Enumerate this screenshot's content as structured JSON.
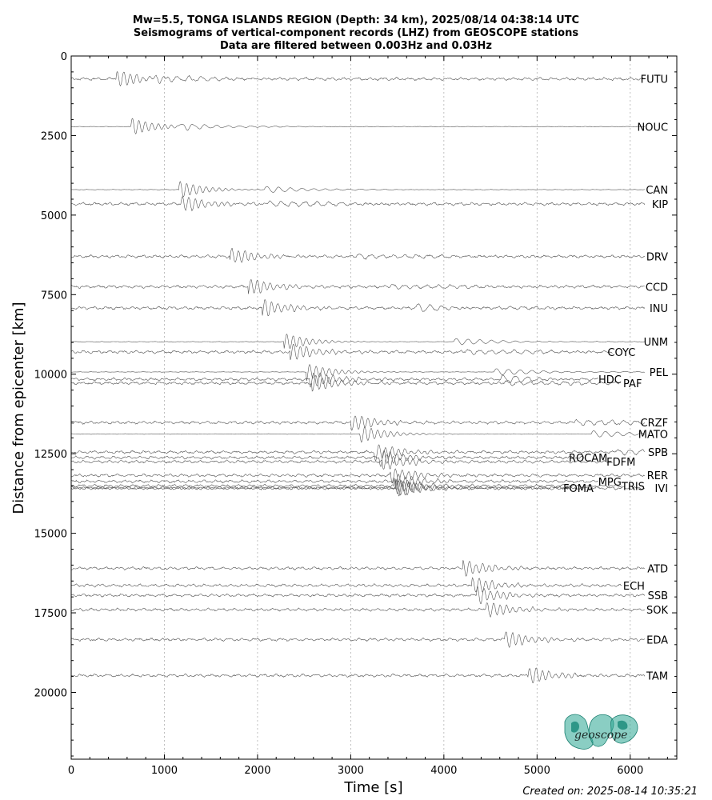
{
  "chart_data": {
    "type": "seismogram-section",
    "title_lines": [
      "Mw=5.5, TONGA ISLANDS REGION (Depth: 34 km), 2025/08/14 04:38:14 UTC",
      "Seismograms of vertical-component records (LHZ) from GEOSCOPE stations",
      "Data are filtered between 0.003Hz and 0.03Hz"
    ],
    "xlabel": "Time [s]",
    "ylabel": "Distance from epicenter [km]",
    "xlim": [
      0,
      6500
    ],
    "ylim": [
      22100,
      0
    ],
    "x_ticks": [
      0,
      1000,
      2000,
      3000,
      4000,
      5000,
      6000
    ],
    "y_ticks": [
      0,
      2500,
      5000,
      7500,
      10000,
      12500,
      15000,
      17500,
      20000
    ],
    "grid": "vertical dotted lines at major x ticks",
    "stations": [
      {
        "name": "FUTU",
        "distance": 720,
        "arrival": 480,
        "label_x": 6200
      },
      {
        "name": "NOUC",
        "distance": 2220,
        "arrival": 640,
        "label_x": 6200
      },
      {
        "name": "CAN",
        "distance": 4200,
        "arrival": 1150,
        "label_x": 6200
      },
      {
        "name": "KIP",
        "distance": 4650,
        "arrival": 1170,
        "label_x": 6200
      },
      {
        "name": "DRV",
        "distance": 6300,
        "arrival": 1700,
        "label_x": 6200
      },
      {
        "name": "CCD",
        "distance": 7250,
        "arrival": 1900,
        "label_x": 6200
      },
      {
        "name": "INU",
        "distance": 7920,
        "arrival": 2050,
        "label_x": 6200
      },
      {
        "name": "UNM",
        "distance": 8980,
        "arrival": 2280,
        "label_x": 6200
      },
      {
        "name": "COYC",
        "distance": 9300,
        "arrival": 2350,
        "label_x": 5850
      },
      {
        "name": "PEL",
        "distance": 9930,
        "arrival": 2520,
        "label_x": 6200
      },
      {
        "name": "HDC",
        "distance": 10160,
        "arrival": 2560,
        "label_x": 5700
      },
      {
        "name": "PAF",
        "distance": 10280,
        "arrival": 2580,
        "label_x": 5920
      },
      {
        "name": "CRZF",
        "distance": 11520,
        "arrival": 3000,
        "label_x": 6200
      },
      {
        "name": "MATO",
        "distance": 11880,
        "arrival": 3100,
        "label_x": 6200
      },
      {
        "name": "SPB",
        "distance": 12450,
        "arrival": 3250,
        "label_x": 6200
      },
      {
        "name": "ROCAM",
        "distance": 12620,
        "arrival": 3300,
        "label_x": 5550
      },
      {
        "name": "FDFM",
        "distance": 12750,
        "arrival": 3330,
        "label_x": 5850
      },
      {
        "name": "RER",
        "distance": 13180,
        "arrival": 3420,
        "label_x": 6200
      },
      {
        "name": "MPG",
        "distance": 13370,
        "arrival": 3450,
        "label_x": 5700
      },
      {
        "name": "TRIS",
        "distance": 13510,
        "arrival": 3470,
        "label_x": 5950
      },
      {
        "name": "IVI",
        "distance": 13580,
        "arrival": 3500,
        "label_x": 6200
      },
      {
        "name": "FOMA",
        "distance": 13580,
        "arrival": 3480,
        "label_x": 5400
      },
      {
        "name": "ATD",
        "distance": 16100,
        "arrival": 4200,
        "label_x": 6200
      },
      {
        "name": "ECH",
        "distance": 16640,
        "arrival": 4300,
        "label_x": 5950
      },
      {
        "name": "SSB",
        "distance": 16950,
        "arrival": 4350,
        "label_x": 6200
      },
      {
        "name": "SOK",
        "distance": 17400,
        "arrival": 4450,
        "label_x": 6200
      },
      {
        "name": "EDA",
        "distance": 18340,
        "arrival": 4650,
        "label_x": 6200
      },
      {
        "name": "TAM",
        "distance": 19470,
        "arrival": 4900,
        "label_x": 6200
      }
    ]
  },
  "footer": {
    "created": "Created on: 2025-08-14 10:35:21"
  },
  "logo": {
    "text": "geoscope",
    "color": "#2aa592"
  }
}
